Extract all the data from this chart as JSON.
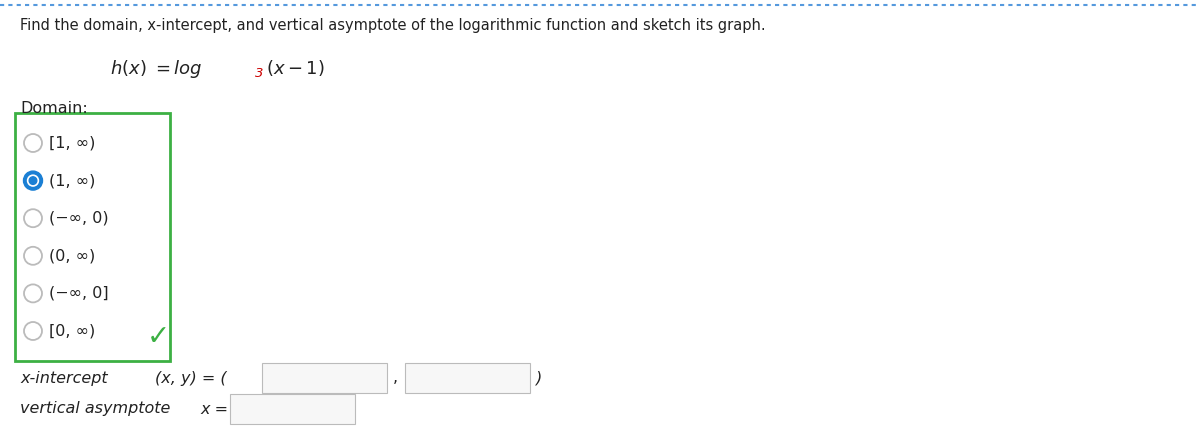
{
  "title_text": "Find the domain, x-intercept, and vertical asymptote of the logarithmic function and sketch its graph.",
  "domain_label": "Domain:",
  "options": [
    "[1, ∞)",
    "(1, ∞)",
    "(−∞, 0)",
    "(0, ∞)",
    "(−∞, 0]",
    "[0, ∞)"
  ],
  "selected_option_index": 1,
  "checkmark_color": "#3cb043",
  "box_color": "#3cb043",
  "radio_selected_color": "#1a7fd4",
  "radio_unselected_color": "#bbbbbb",
  "x_intercept_label": "x-intercept",
  "xy_label": "(x, y) = (",
  "vertical_asymptote_label": "vertical asymptote",
  "x_eq_label": "x =",
  "background_color": "#ffffff",
  "text_color": "#222222",
  "top_border_color": "#5599dd",
  "function_sub_color": "#cc0000",
  "font_size_title": 10.5,
  "font_size_function": 13,
  "font_size_option": 11.5,
  "font_size_bottom": 11.5
}
